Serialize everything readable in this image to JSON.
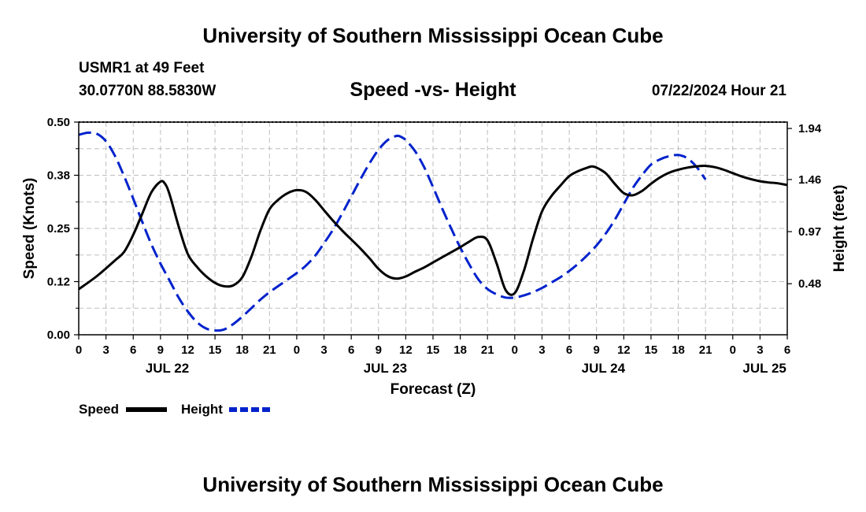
{
  "header": {
    "title": "University of Southern Mississippi Ocean Cube",
    "station": "USMR1 at 49 Feet",
    "coords": "30.0770N  88.5830W",
    "datetime": "07/22/2024 Hour 21"
  },
  "footer": {
    "title": "University of Southern Mississippi Ocean Cube"
  },
  "chart_data": {
    "type": "line",
    "title": "Speed -vs- Height",
    "xlabel": "Forecast (Z)",
    "ylabel": "Speed (Knots)",
    "y2label": "Height (feet)",
    "x_unit": "hours from JUL 22 00Z",
    "xlim": [
      0,
      78
    ],
    "x_tick_step": 3,
    "x_tick_labels": [
      "0",
      "3",
      "6",
      "9",
      "12",
      "15",
      "18",
      "21",
      "0",
      "3",
      "6",
      "9",
      "12",
      "15",
      "18",
      "21",
      "0",
      "3",
      "6",
      "9",
      "12",
      "15",
      "18",
      "21",
      "0",
      "3",
      "6"
    ],
    "date_labels": [
      {
        "label": "JUL 22",
        "x": 9.75
      },
      {
        "label": "JUL 23",
        "x": 33.75
      },
      {
        "label": "JUL 24",
        "x": 57.75
      },
      {
        "label": "JUL 25",
        "x": 75.5
      }
    ],
    "ylim": [
      0,
      0.5
    ],
    "y_ticks": [
      0,
      0.125,
      0.25,
      0.375,
      0.5
    ],
    "y_tick_labels": [
      "0.00",
      "0.12",
      "0.25",
      "0.38",
      "0.50"
    ],
    "y2lim": [
      0,
      2.0
    ],
    "y2_ticks": [
      0.48,
      0.97,
      1.46,
      1.94
    ],
    "y2_tick_labels": [
      "0.48",
      "0.97",
      "1.46",
      "1.94"
    ],
    "grid": true,
    "legend": [
      {
        "name": "Speed",
        "color": "#000000",
        "style": "solid"
      },
      {
        "name": "Height",
        "color": "#0022cc",
        "style": "dashed"
      }
    ],
    "series": [
      {
        "name": "Speed",
        "axis": "left",
        "color": "#000000",
        "points": [
          [
            0,
            0.107
          ],
          [
            2,
            0.138
          ],
          [
            4,
            0.175
          ],
          [
            5,
            0.195
          ],
          [
            6,
            0.235
          ],
          [
            7,
            0.285
          ],
          [
            8,
            0.335
          ],
          [
            9,
            0.36
          ],
          [
            9.5,
            0.355
          ],
          [
            10,
            0.33
          ],
          [
            11,
            0.255
          ],
          [
            12,
            0.19
          ],
          [
            13,
            0.16
          ],
          [
            14,
            0.138
          ],
          [
            15,
            0.122
          ],
          [
            16,
            0.114
          ],
          [
            17,
            0.116
          ],
          [
            18,
            0.135
          ],
          [
            19,
            0.183
          ],
          [
            20,
            0.245
          ],
          [
            21,
            0.295
          ],
          [
            22,
            0.318
          ],
          [
            23,
            0.333
          ],
          [
            24,
            0.34
          ],
          [
            25,
            0.336
          ],
          [
            26,
            0.318
          ],
          [
            27,
            0.293
          ],
          [
            28,
            0.268
          ],
          [
            29,
            0.245
          ],
          [
            30,
            0.224
          ],
          [
            31,
            0.203
          ],
          [
            32,
            0.18
          ],
          [
            33,
            0.155
          ],
          [
            34,
            0.138
          ],
          [
            35,
            0.132
          ],
          [
            36,
            0.137
          ],
          [
            37,
            0.148
          ],
          [
            38,
            0.158
          ],
          [
            39,
            0.17
          ],
          [
            40,
            0.182
          ],
          [
            41,
            0.194
          ],
          [
            42,
            0.206
          ],
          [
            43,
            0.219
          ],
          [
            44,
            0.23
          ],
          [
            45,
            0.222
          ],
          [
            46,
            0.168
          ],
          [
            47,
            0.105
          ],
          [
            48,
            0.098
          ],
          [
            49,
            0.15
          ],
          [
            50,
            0.225
          ],
          [
            51,
            0.29
          ],
          [
            52,
            0.325
          ],
          [
            53,
            0.35
          ],
          [
            54,
            0.373
          ],
          [
            55,
            0.385
          ],
          [
            56,
            0.393
          ],
          [
            56.5,
            0.396
          ],
          [
            57,
            0.393
          ],
          [
            58,
            0.38
          ],
          [
            59,
            0.355
          ],
          [
            60,
            0.333
          ],
          [
            61,
            0.328
          ],
          [
            62,
            0.338
          ],
          [
            63,
            0.355
          ],
          [
            64,
            0.37
          ],
          [
            65,
            0.381
          ],
          [
            66,
            0.388
          ],
          [
            67,
            0.393
          ],
          [
            68,
            0.396
          ],
          [
            69,
            0.397
          ],
          [
            70,
            0.394
          ],
          [
            71,
            0.388
          ],
          [
            72,
            0.38
          ],
          [
            73,
            0.372
          ],
          [
            74,
            0.366
          ],
          [
            75,
            0.361
          ],
          [
            76,
            0.358
          ],
          [
            77,
            0.356
          ],
          [
            78,
            0.352
          ]
        ]
      },
      {
        "name": "Height",
        "axis": "right",
        "color": "#0022cc",
        "points": [
          [
            0,
            1.88
          ],
          [
            1,
            1.9
          ],
          [
            2,
            1.89
          ],
          [
            3,
            1.82
          ],
          [
            4,
            1.68
          ],
          [
            5,
            1.49
          ],
          [
            6,
            1.28
          ],
          [
            7,
            1.06
          ],
          [
            8,
            0.85
          ],
          [
            9,
            0.67
          ],
          [
            10,
            0.51
          ],
          [
            11,
            0.35
          ],
          [
            12,
            0.22
          ],
          [
            13,
            0.12
          ],
          [
            14,
            0.06
          ],
          [
            15,
            0.04
          ],
          [
            16,
            0.05
          ],
          [
            17,
            0.1
          ],
          [
            18,
            0.17
          ],
          [
            19,
            0.25
          ],
          [
            20,
            0.33
          ],
          [
            21,
            0.4
          ],
          [
            22,
            0.46
          ],
          [
            23,
            0.52
          ],
          [
            24,
            0.58
          ],
          [
            25,
            0.65
          ],
          [
            26,
            0.74
          ],
          [
            27,
            0.86
          ],
          [
            28,
            0.99
          ],
          [
            29,
            1.14
          ],
          [
            30,
            1.3
          ],
          [
            31,
            1.46
          ],
          [
            32,
            1.61
          ],
          [
            33,
            1.74
          ],
          [
            34,
            1.83
          ],
          [
            35,
            1.87
          ],
          [
            35.5,
            1.86
          ],
          [
            36,
            1.83
          ],
          [
            37,
            1.73
          ],
          [
            38,
            1.58
          ],
          [
            39,
            1.39
          ],
          [
            40,
            1.19
          ],
          [
            41,
            1.0
          ],
          [
            42,
            0.82
          ],
          [
            43,
            0.66
          ],
          [
            44,
            0.52
          ],
          [
            45,
            0.43
          ],
          [
            46,
            0.38
          ],
          [
            47,
            0.35
          ],
          [
            48,
            0.35
          ],
          [
            49,
            0.37
          ],
          [
            50,
            0.4
          ],
          [
            51,
            0.44
          ],
          [
            52,
            0.49
          ],
          [
            53,
            0.54
          ],
          [
            54,
            0.6
          ],
          [
            55,
            0.67
          ],
          [
            56,
            0.75
          ],
          [
            57,
            0.84
          ],
          [
            58,
            0.95
          ],
          [
            59,
            1.08
          ],
          [
            60,
            1.23
          ],
          [
            61,
            1.38
          ],
          [
            62,
            1.5
          ],
          [
            63,
            1.6
          ],
          [
            64,
            1.65
          ],
          [
            65,
            1.68
          ],
          [
            66,
            1.69
          ],
          [
            67,
            1.66
          ],
          [
            68,
            1.58
          ],
          [
            69,
            1.46
          ]
        ]
      }
    ]
  }
}
